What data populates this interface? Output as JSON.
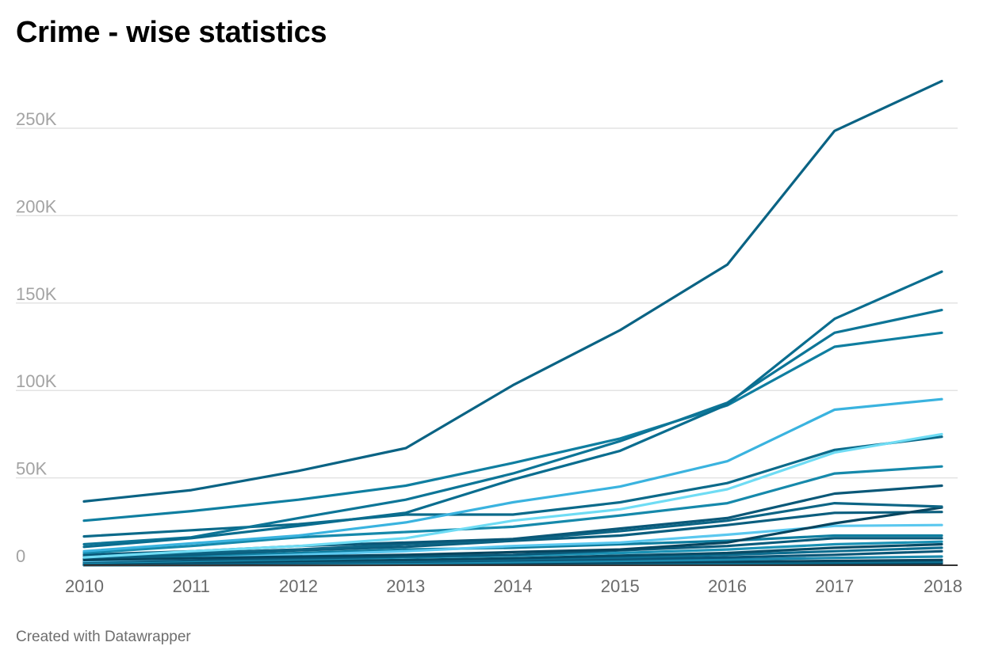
{
  "title": "Crime - wise statistics",
  "credit": "Created with Datawrapper",
  "chart_data": {
    "type": "line",
    "title": "Crime - wise statistics",
    "xlabel": "",
    "ylabel": "",
    "x": [
      "2010",
      "2011",
      "2012",
      "2013",
      "2014",
      "2015",
      "2016",
      "2017",
      "2018"
    ],
    "y_ticks": [
      {
        "value": 0,
        "label": "0"
      },
      {
        "value": 50000,
        "label": "50K"
      },
      {
        "value": 100000,
        "label": "100K"
      },
      {
        "value": 150000,
        "label": "150K"
      },
      {
        "value": 200000,
        "label": "200K"
      },
      {
        "value": 250000,
        "label": "250K"
      }
    ],
    "ylim": [
      0,
      280000
    ],
    "grid": true,
    "legend": "none",
    "series": [
      {
        "color": "#0a6384",
        "values": [
          36500,
          43000,
          54000,
          67000,
          103000,
          134500,
          172000,
          248500,
          277000
        ]
      },
      {
        "color": "#0a6d8f",
        "values": [
          10500,
          15500,
          22500,
          30000,
          49000,
          65500,
          92000,
          141000,
          168000
        ]
      },
      {
        "color": "#0d7597",
        "values": [
          12000,
          16000,
          27000,
          37500,
          52500,
          71000,
          93000,
          133000,
          146000
        ]
      },
      {
        "color": "#0f7ea0",
        "values": [
          25500,
          31000,
          37500,
          45500,
          58500,
          72500,
          91500,
          125000,
          133000
        ]
      },
      {
        "color": "#3ab3df",
        "values": [
          8000,
          12500,
          17000,
          24500,
          36000,
          45000,
          59500,
          89000,
          95000
        ]
      },
      {
        "color": "#6fdcf4",
        "values": [
          4500,
          8000,
          11000,
          15500,
          25500,
          32000,
          43500,
          64500,
          75000
        ]
      },
      {
        "color": "#0b6a8a",
        "values": [
          16500,
          20000,
          23500,
          29000,
          29000,
          36000,
          47000,
          66000,
          73500
        ]
      },
      {
        "color": "#1689ab",
        "values": [
          7000,
          11000,
          16000,
          19000,
          22000,
          28500,
          35500,
          52500,
          56500
        ]
      },
      {
        "color": "#0a5878",
        "values": [
          6000,
          8000,
          11000,
          13000,
          15000,
          21000,
          27000,
          41000,
          45500
        ]
      },
      {
        "color": "#0d6585",
        "values": [
          5000,
          7000,
          9000,
          12000,
          14500,
          19500,
          25500,
          35500,
          33500
        ]
      },
      {
        "color": "#07455f",
        "values": [
          3000,
          4000,
          5000,
          6000,
          7500,
          9000,
          13000,
          24000,
          33000
        ]
      },
      {
        "color": "#0b5e7e",
        "values": [
          4000,
          6000,
          8500,
          10500,
          14000,
          17000,
          23000,
          30000,
          30500
        ]
      },
      {
        "color": "#5bc8ef",
        "values": [
          2500,
          4000,
          6000,
          8000,
          11000,
          13000,
          17500,
          22500,
          23000
        ]
      },
      {
        "color": "#0f7ea0",
        "values": [
          3500,
          5000,
          7000,
          9000,
          10000,
          12000,
          14000,
          17000,
          17000
        ]
      },
      {
        "color": "#0a5a7a",
        "values": [
          2000,
          3000,
          4000,
          5000,
          6000,
          8500,
          11000,
          15500,
          15500
        ]
      },
      {
        "color": "#1b92b5",
        "values": [
          1500,
          2500,
          3500,
          4500,
          5500,
          7000,
          9000,
          12000,
          13500
        ]
      },
      {
        "color": "#074b66",
        "values": [
          1000,
          1500,
          2500,
          3000,
          4000,
          5500,
          7000,
          10000,
          12000
        ]
      },
      {
        "color": "#0d6d8f",
        "values": [
          800,
          1200,
          2000,
          2500,
          3500,
          4500,
          6000,
          8000,
          10000
        ]
      },
      {
        "color": "#0a5576",
        "values": [
          500,
          900,
          1400,
          2000,
          2800,
          3500,
          4500,
          6000,
          8000
        ]
      },
      {
        "color": "#1a89ad",
        "values": [
          300,
          600,
          900,
          1300,
          1800,
          2500,
          3200,
          4200,
          5000
        ]
      },
      {
        "color": "#08425c",
        "values": [
          200,
          400,
          600,
          800,
          1100,
          1500,
          2000,
          2500,
          3000
        ]
      },
      {
        "color": "#0e7192",
        "values": [
          100,
          200,
          300,
          500,
          700,
          900,
          1200,
          1600,
          2000
        ]
      },
      {
        "color": "#063a52",
        "values": [
          50,
          100,
          150,
          250,
          350,
          500,
          700,
          900,
          1100
        ]
      }
    ]
  }
}
